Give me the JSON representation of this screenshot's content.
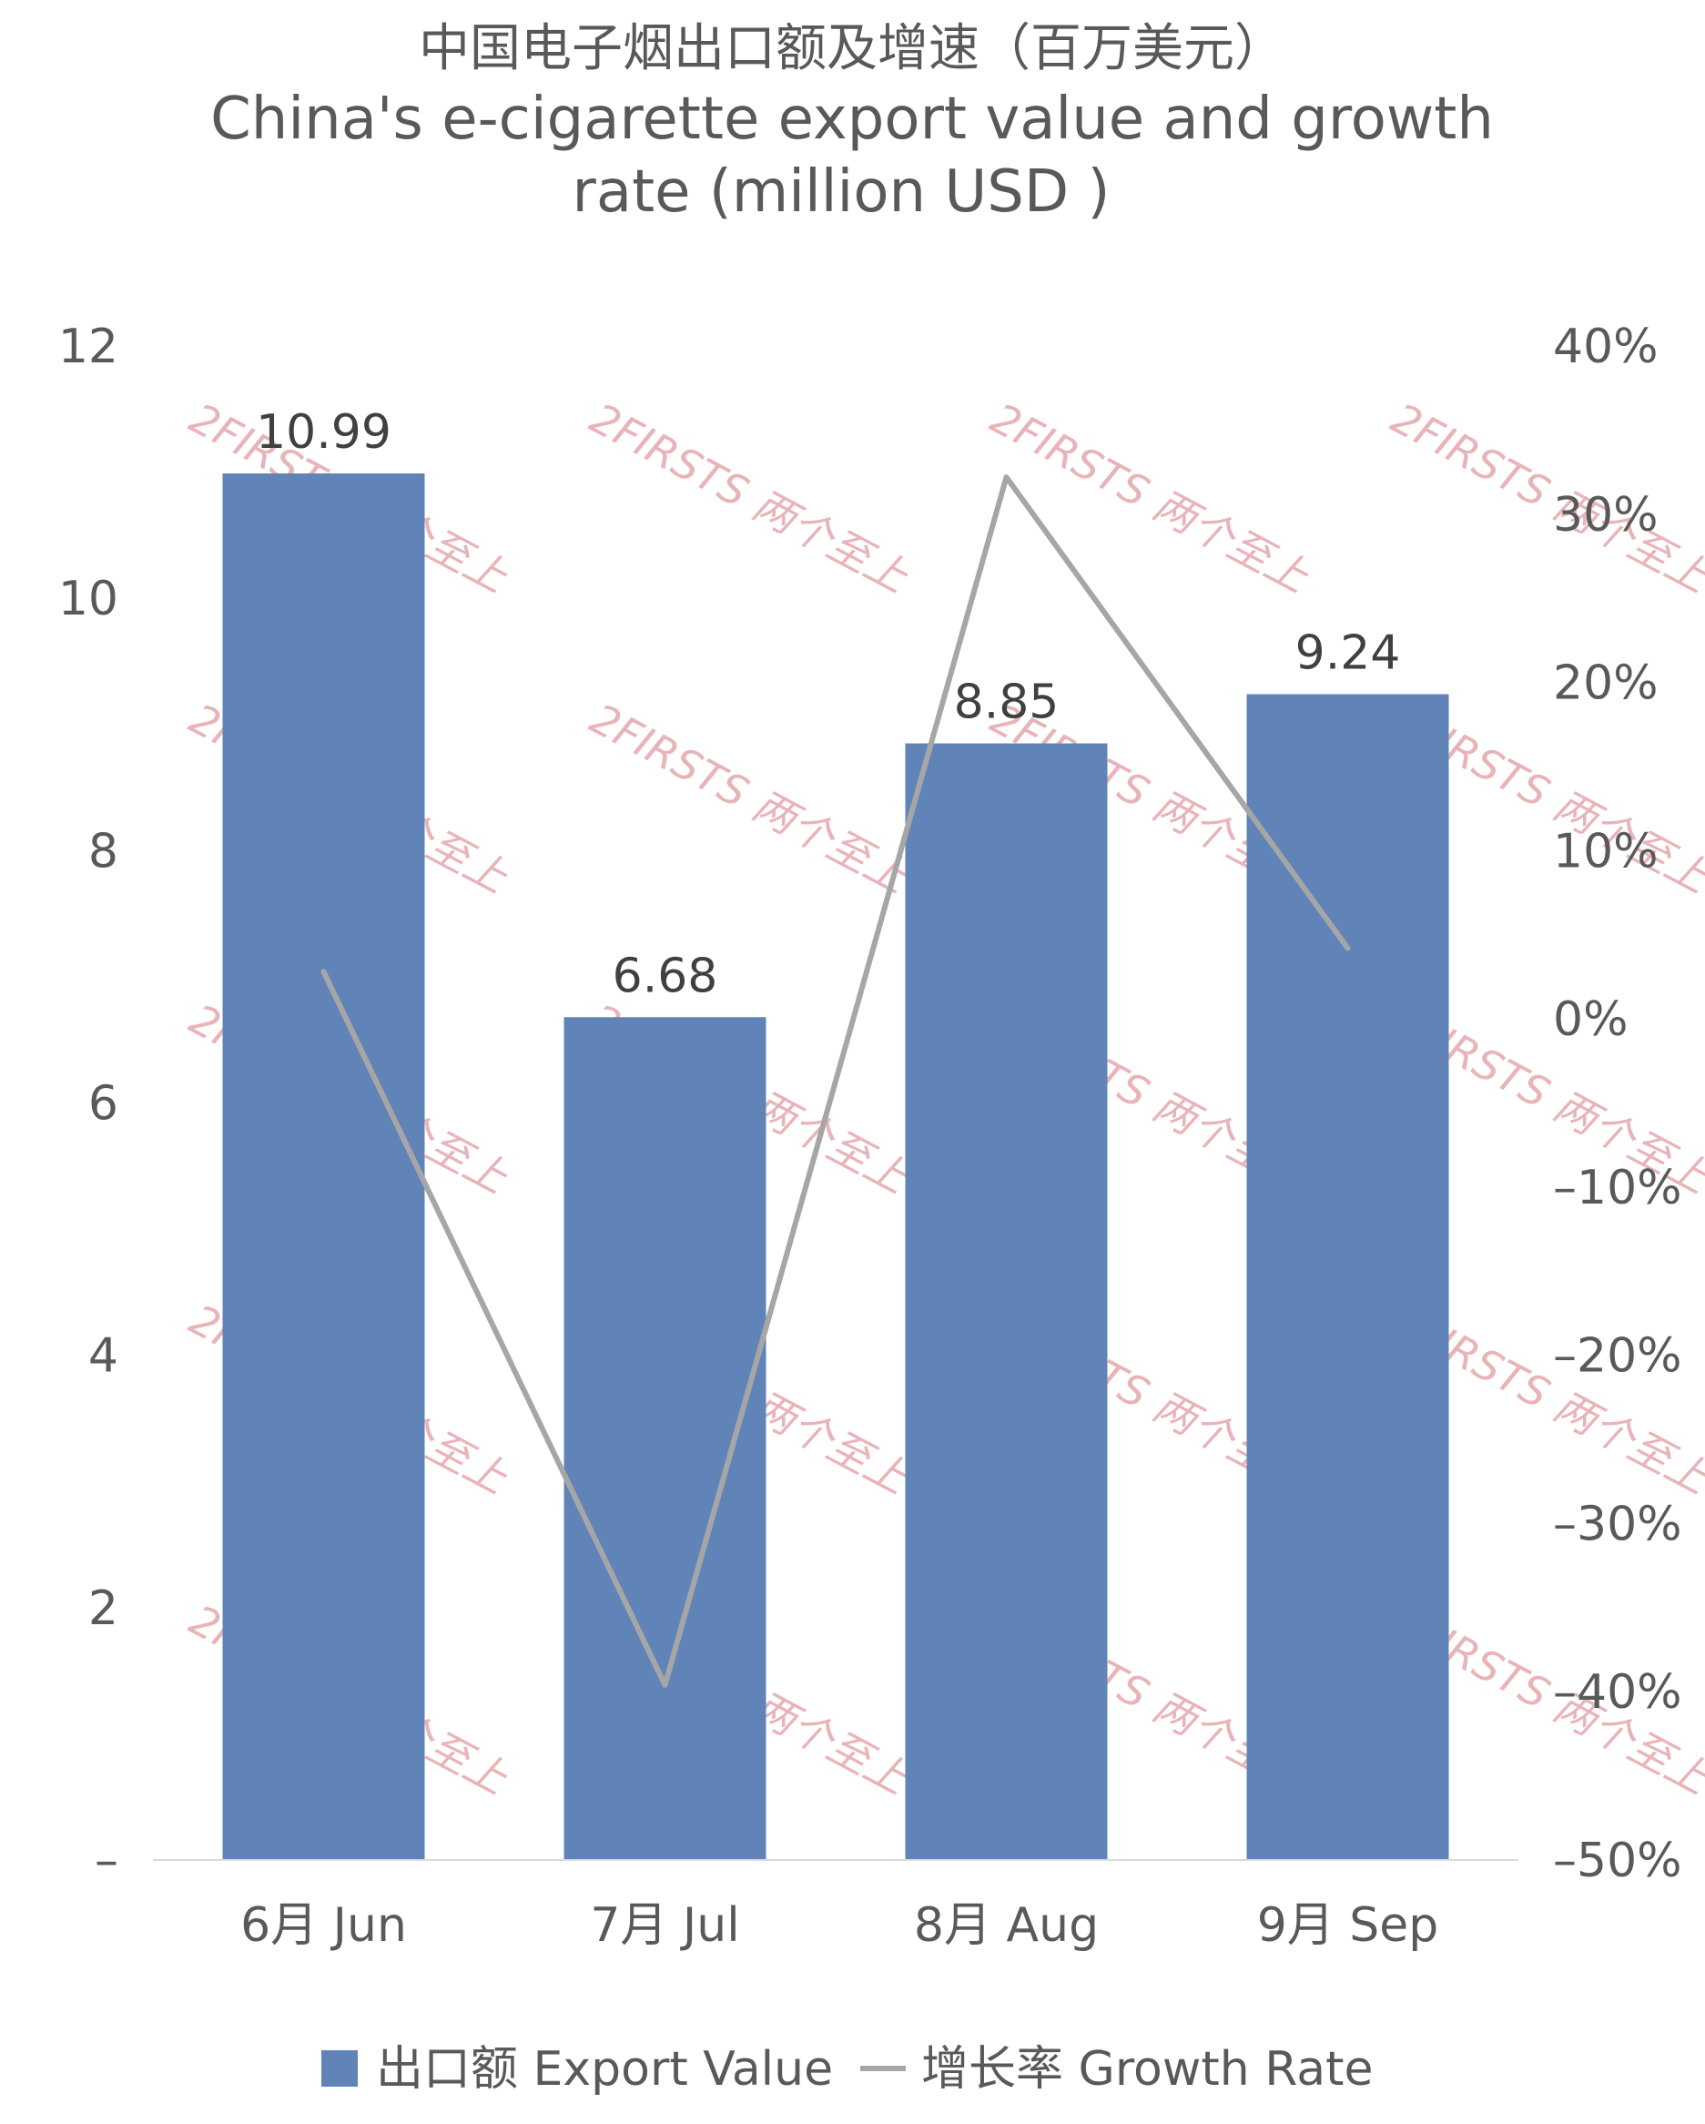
{
  "title": {
    "line1": "中国电子烟出口额及增速（百万美元）",
    "line2": "China's e-cigarette export value and growth",
    "line3": "rate (million USD )"
  },
  "watermark": {
    "text": "2FIRSTS 两个至上"
  },
  "legend": {
    "bar_label": "出口额 Export Value",
    "line_label": "增长率 Growth Rate"
  },
  "chart_data": {
    "type": "bar",
    "categories": [
      "6月 Jun",
      "7月 Jul",
      "8月 Aug",
      "9月 Sep"
    ],
    "series": [
      {
        "name": "出口额 Export Value",
        "type": "bar",
        "axis": "left",
        "values": [
          10.99,
          6.68,
          8.85,
          9.24
        ],
        "data_labels": [
          "10.99",
          "6.68",
          "8.85",
          "9.24"
        ],
        "color": "#6184b8"
      },
      {
        "name": "增长率 Growth Rate",
        "type": "line",
        "axis": "right",
        "values": [
          2.8,
          -39.6,
          32.2,
          4.2
        ],
        "unit": "%",
        "color": "#a6a6a6"
      }
    ],
    "y_left": {
      "min": 0,
      "max": 12,
      "ticks": [
        0,
        2,
        4,
        6,
        8,
        10,
        12
      ],
      "tick_labels": [
        "–",
        "2",
        "4",
        "6",
        "8",
        "10",
        "12"
      ]
    },
    "y_right": {
      "min": -50,
      "max": 40,
      "ticks": [
        40,
        30,
        20,
        10,
        0,
        -10,
        -20,
        -30,
        -40,
        -50
      ],
      "tick_labels": [
        "40%",
        "30%",
        "20%",
        "10%",
        "0%",
        "–10%",
        "–20%",
        "–30%",
        "–40%",
        "–50%"
      ]
    },
    "grid": false,
    "legend_position": "bottom"
  }
}
